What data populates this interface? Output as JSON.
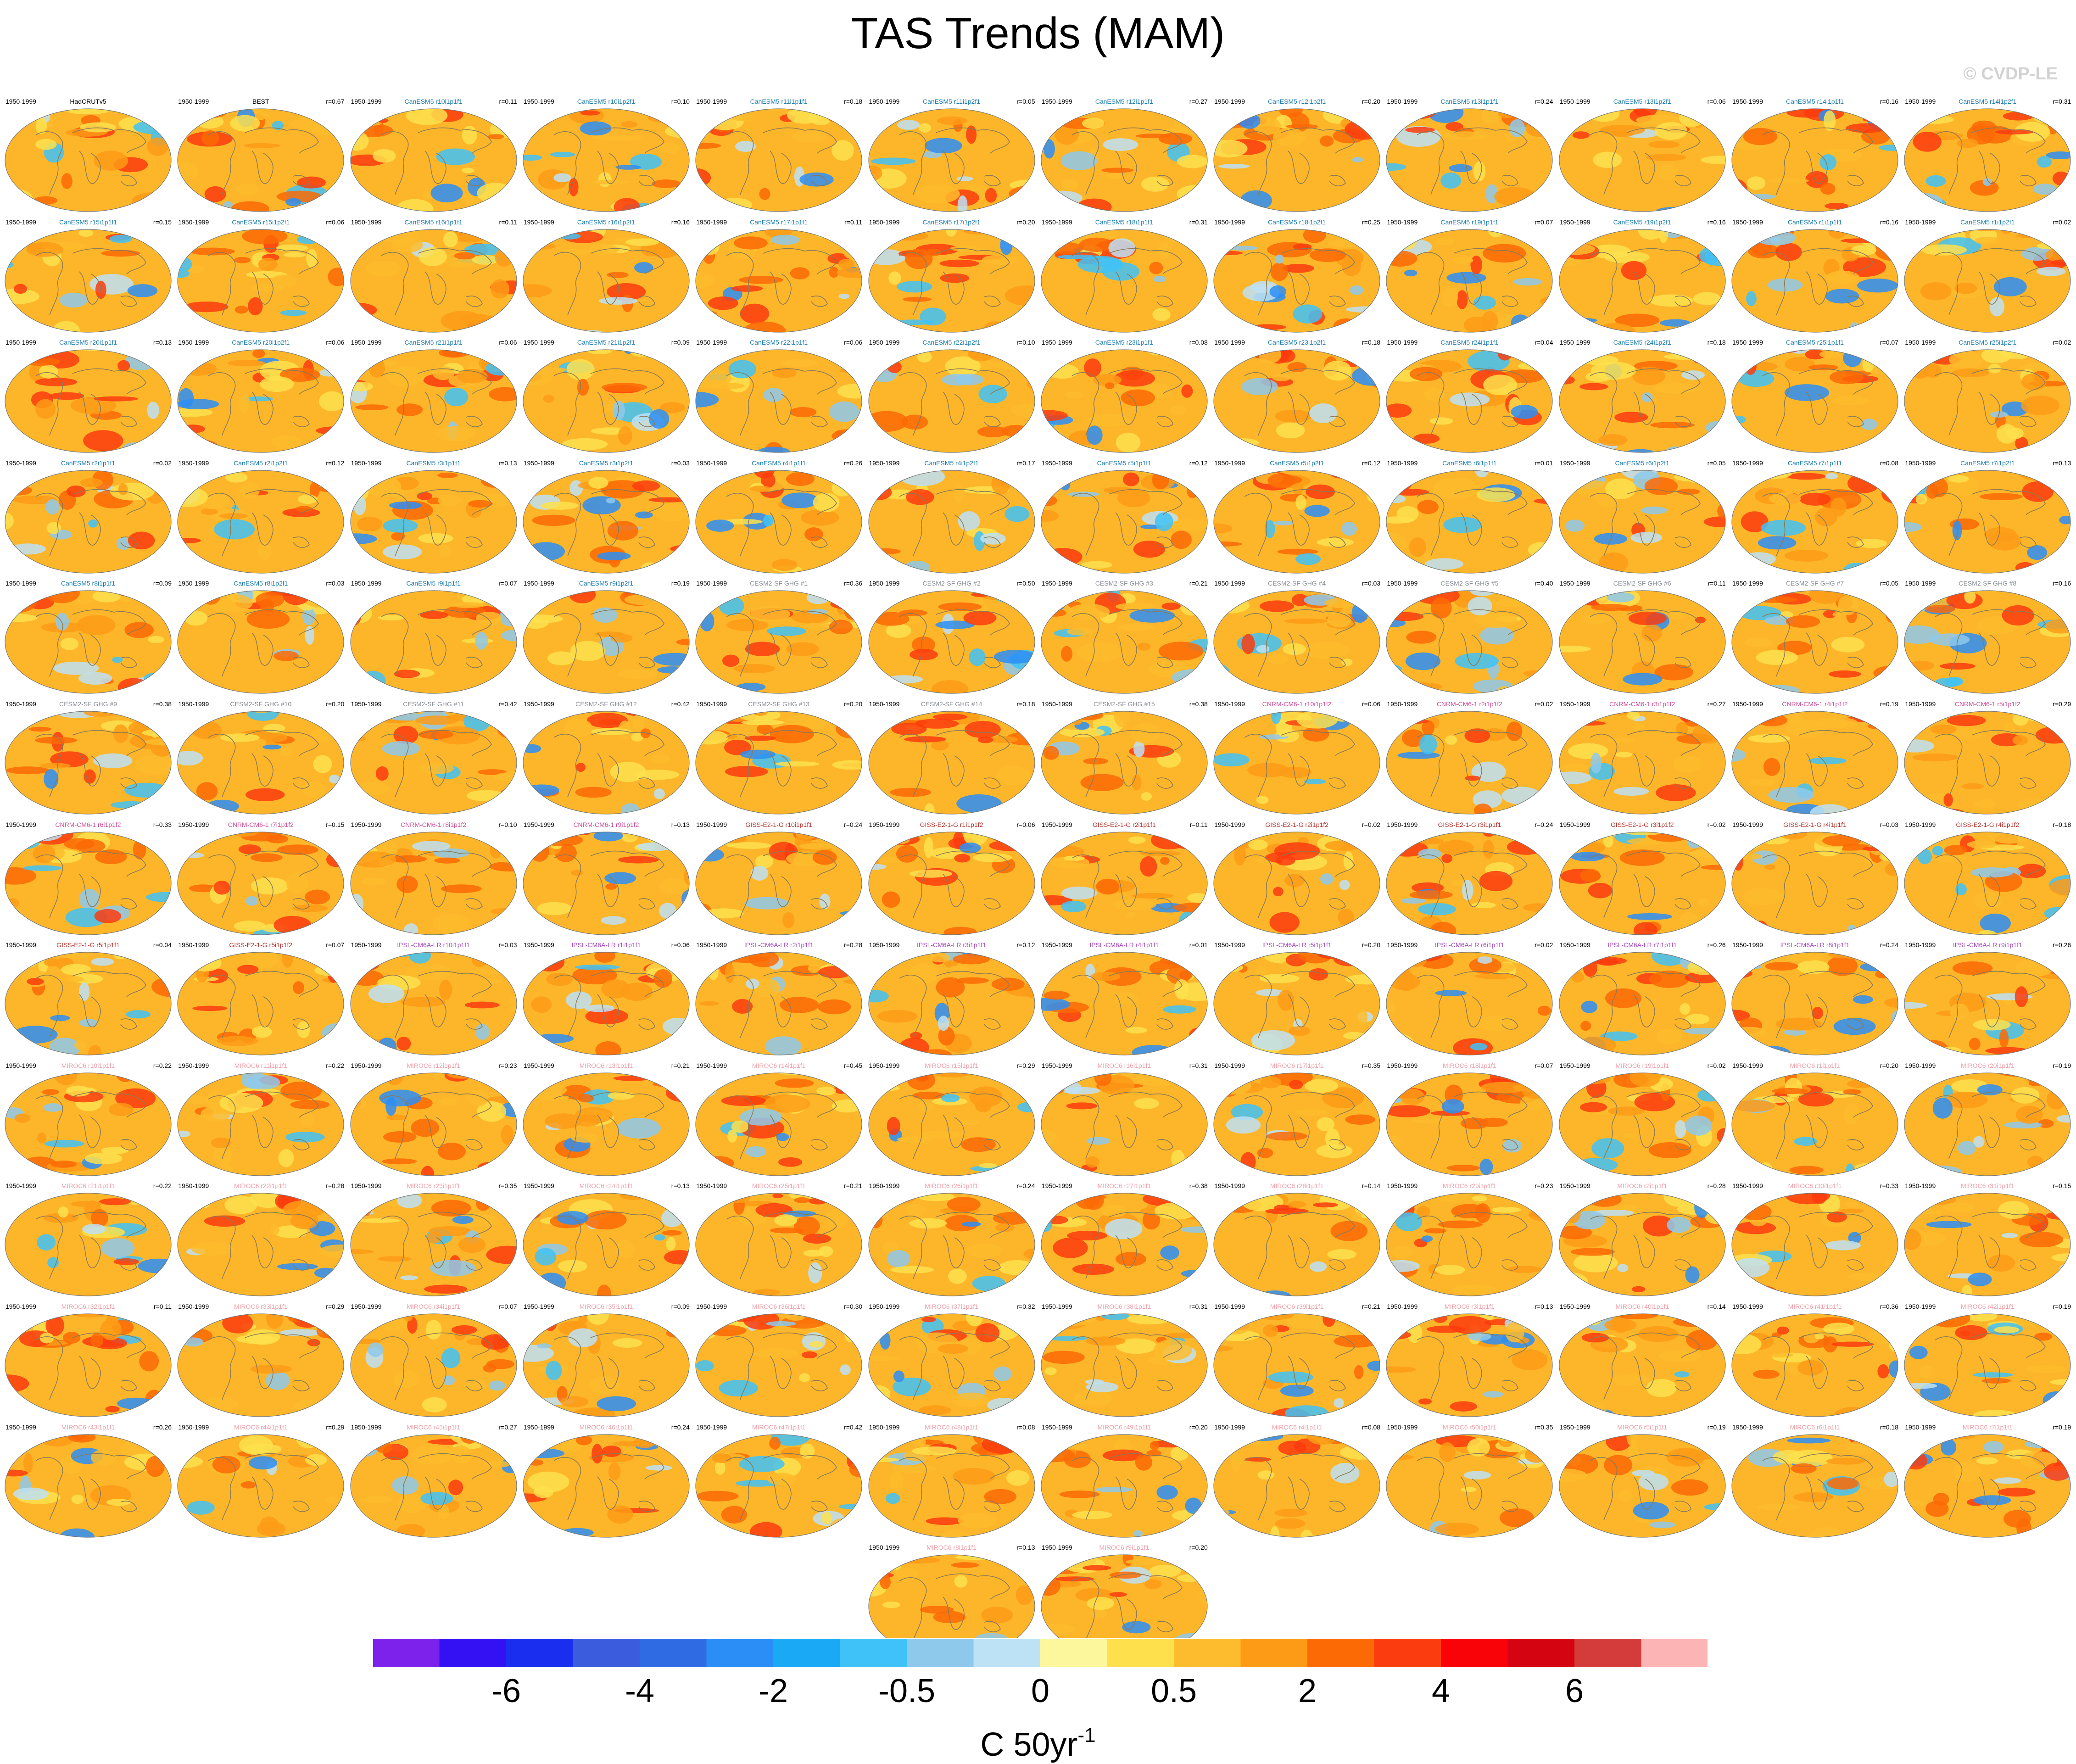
{
  "title": "TAS Trends (MAM)",
  "watermark": "© CVDP-LE",
  "period": "1950-1999",
  "colorbar": {
    "units_base": "C 50yr",
    "units_exp": "-1",
    "tick_labels": [
      "-6",
      "-4",
      "-2",
      "-0.5",
      "0",
      "0.5",
      "2",
      "4",
      "6"
    ],
    "colors": [
      "#7d22ea",
      "#3311f2",
      "#1a2ef0",
      "#3b5ddd",
      "#2f6ce3",
      "#2b8ef6",
      "#1aa9f4",
      "#3fc2f7",
      "#8ec9ec",
      "#bde1f5",
      "#fcf69d",
      "#fde04c",
      "#fdbc2d",
      "#fd9b16",
      "#fc6a05",
      "#fb3c0e",
      "#f90208",
      "#d40410",
      "#d43c3c",
      "#fcb4b4"
    ]
  },
  "chart_data": {
    "type": "heatmap",
    "description_levels": [
      -6,
      -4,
      -2,
      -0.5,
      0,
      0.5,
      2,
      4,
      6
    ],
    "panels": [
      {
        "name": "HadCRUTv5",
        "r": "",
        "color": "#000000"
      },
      {
        "name": "BEST",
        "r": "r=0.67",
        "color": "#000000"
      },
      {
        "name": "CanESM5 r10i1p1f1",
        "r": "r=0.11",
        "color": "#1b7cb0"
      },
      {
        "name": "CanESM5 r10i1p2f1",
        "r": "r=0.10",
        "color": "#1b7cb0"
      },
      {
        "name": "CanESM5 r11i1p1f1",
        "r": "r=0.18",
        "color": "#1b7cb0"
      },
      {
        "name": "CanESM5 r11i1p2f1",
        "r": "r=0.05",
        "color": "#1b7cb0"
      },
      {
        "name": "CanESM5 r12i1p1f1",
        "r": "r=0.27",
        "color": "#1b7cb0"
      },
      {
        "name": "CanESM5 r12i1p2f1",
        "r": "r=0.20",
        "color": "#1b7cb0"
      },
      {
        "name": "CanESM5 r13i1p1f1",
        "r": "r=0.24",
        "color": "#1b7cb0"
      },
      {
        "name": "CanESM5 r13i1p2f1",
        "r": "r=0.06",
        "color": "#1b7cb0"
      },
      {
        "name": "CanESM5 r14i1p1f1",
        "r": "r=0.16",
        "color": "#1b7cb0"
      },
      {
        "name": "CanESM5 r14i1p2f1",
        "r": "r=0.31",
        "color": "#1b7cb0"
      },
      {
        "name": "CanESM5 r15i1p1f1",
        "r": "r=0.15",
        "color": "#1b7cb0"
      },
      {
        "name": "CanESM5 r15i1p2f1",
        "r": "r=0.06",
        "color": "#1b7cb0"
      },
      {
        "name": "CanESM5 r16i1p1f1",
        "r": "r=0.11",
        "color": "#1b7cb0"
      },
      {
        "name": "CanESM5 r16i1p2f1",
        "r": "r=0.16",
        "color": "#1b7cb0"
      },
      {
        "name": "CanESM5 r17i1p1f1",
        "r": "r=0.11",
        "color": "#1b7cb0"
      },
      {
        "name": "CanESM5 r17i1p2f1",
        "r": "r=0.20",
        "color": "#1b7cb0"
      },
      {
        "name": "CanESM5 r18i1p1f1",
        "r": "r=0.31",
        "color": "#1b7cb0"
      },
      {
        "name": "CanESM5 r18i1p2f1",
        "r": "r=0.25",
        "color": "#1b7cb0"
      },
      {
        "name": "CanESM5 r19i1p1f1",
        "r": "r=0.07",
        "color": "#1b7cb0"
      },
      {
        "name": "CanESM5 r19i1p2f1",
        "r": "r=0.16",
        "color": "#1b7cb0"
      },
      {
        "name": "CanESM5 r1i1p1f1",
        "r": "r=0.16",
        "color": "#1b7cb0"
      },
      {
        "name": "CanESM5 r1i1p2f1",
        "r": "r=0.02",
        "color": "#1b7cb0"
      },
      {
        "name": "CanESM5 r20i1p1f1",
        "r": "r=0.13",
        "color": "#1b7cb0"
      },
      {
        "name": "CanESM5 r20i1p2f1",
        "r": "r=0.06",
        "color": "#1b7cb0"
      },
      {
        "name": "CanESM5 r21i1p1f1",
        "r": "r=0.06",
        "color": "#1b7cb0"
      },
      {
        "name": "CanESM5 r21i1p2f1",
        "r": "r=0.09",
        "color": "#1b7cb0"
      },
      {
        "name": "CanESM5 r22i1p1f1",
        "r": "r=0.06",
        "color": "#1b7cb0"
      },
      {
        "name": "CanESM5 r22i1p2f1",
        "r": "r=0.10",
        "color": "#1b7cb0"
      },
      {
        "name": "CanESM5 r23i1p1f1",
        "r": "r=0.08",
        "color": "#1b7cb0"
      },
      {
        "name": "CanESM5 r23i1p2f1",
        "r": "r=0.18",
        "color": "#1b7cb0"
      },
      {
        "name": "CanESM5 r24i1p1f1",
        "r": "r=0.04",
        "color": "#1b7cb0"
      },
      {
        "name": "CanESM5 r24i1p2f1",
        "r": "r=0.18",
        "color": "#1b7cb0"
      },
      {
        "name": "CanESM5 r25i1p1f1",
        "r": "r=0.07",
        "color": "#1b7cb0"
      },
      {
        "name": "CanESM5 r25i1p2f1",
        "r": "r=0.02",
        "color": "#1b7cb0"
      },
      {
        "name": "CanESM5 r2i1p1f1",
        "r": "r=0.02",
        "color": "#1b7cb0"
      },
      {
        "name": "CanESM5 r2i1p2f1",
        "r": "r=0.12",
        "color": "#1b7cb0"
      },
      {
        "name": "CanESM5 r3i1p1f1",
        "r": "r=0.13",
        "color": "#1b7cb0"
      },
      {
        "name": "CanESM5 r3i1p2f1",
        "r": "r=0.03",
        "color": "#1b7cb0"
      },
      {
        "name": "CanESM5 r4i1p1f1",
        "r": "r=0.26",
        "color": "#1b7cb0"
      },
      {
        "name": "CanESM5 r4i1p2f1",
        "r": "r=0.17",
        "color": "#1b7cb0"
      },
      {
        "name": "CanESM5 r5i1p1f1",
        "r": "r=0.12",
        "color": "#1b7cb0"
      },
      {
        "name": "CanESM5 r5i1p2f1",
        "r": "r=0.12",
        "color": "#1b7cb0"
      },
      {
        "name": "CanESM5 r6i1p1f1",
        "r": "r=0.01",
        "color": "#1b7cb0"
      },
      {
        "name": "CanESM5 r6i1p2f1",
        "r": "r=0.05",
        "color": "#1b7cb0"
      },
      {
        "name": "CanESM5 r7i1p1f1",
        "r": "r=0.08",
        "color": "#1b7cb0"
      },
      {
        "name": "CanESM5 r7i1p2f1",
        "r": "r=0.13",
        "color": "#1b7cb0"
      },
      {
        "name": "CanESM5 r8i1p1f1",
        "r": "r=0.09",
        "color": "#1b7cb0"
      },
      {
        "name": "CanESM5 r8i1p2f1",
        "r": "r=0.03",
        "color": "#1b7cb0"
      },
      {
        "name": "CanESM5 r9i1p1f1",
        "r": "r=0.07",
        "color": "#1b7cb0"
      },
      {
        "name": "CanESM5 r9i1p2f1",
        "r": "r=0.19",
        "color": "#1b7cb0"
      },
      {
        "name": "CESM2-SF GHG #1",
        "r": "r=0.36",
        "color": "#8a8f96"
      },
      {
        "name": "CESM2-SF GHG #2",
        "r": "r=0.50",
        "color": "#8a8f96"
      },
      {
        "name": "CESM2-SF GHG #3",
        "r": "r=0.21",
        "color": "#8a8f96"
      },
      {
        "name": "CESM2-SF GHG #4",
        "r": "r=0.03",
        "color": "#8a8f96"
      },
      {
        "name": "CESM2-SF GHG #5",
        "r": "r=0.40",
        "color": "#8a8f96"
      },
      {
        "name": "CESM2-SF GHG #6",
        "r": "r=0.11",
        "color": "#8a8f96"
      },
      {
        "name": "CESM2-SF GHG #7",
        "r": "r=0.05",
        "color": "#8a8f96"
      },
      {
        "name": "CESM2-SF GHG #8",
        "r": "r=0.16",
        "color": "#8a8f96"
      },
      {
        "name": "CESM2-SF GHG #9",
        "r": "r=0.38",
        "color": "#8a8f96"
      },
      {
        "name": "CESM2-SF GHG #10",
        "r": "r=0.20",
        "color": "#8a8f96"
      },
      {
        "name": "CESM2-SF GHG #11",
        "r": "r=0.42",
        "color": "#8a8f96"
      },
      {
        "name": "CESM2-SF GHG #12",
        "r": "r=0.42",
        "color": "#8a8f96"
      },
      {
        "name": "CESM2-SF GHG #13",
        "r": "r=0.20",
        "color": "#8a8f96"
      },
      {
        "name": "CESM2-SF GHG #14",
        "r": "r=0.18",
        "color": "#8a8f96"
      },
      {
        "name": "CESM2-SF GHG #15",
        "r": "r=0.38",
        "color": "#8a8f96"
      },
      {
        "name": "CNRM-CM6-1 r10i1p1f2",
        "r": "r=0.06",
        "color": "#d04f9a"
      },
      {
        "name": "CNRM-CM6-1 r2i1p1f2",
        "r": "r=0.02",
        "color": "#d04f9a"
      },
      {
        "name": "CNRM-CM6-1 r3i1p1f2",
        "r": "r=0.27",
        "color": "#d04f9a"
      },
      {
        "name": "CNRM-CM6-1 r4i1p1f2",
        "r": "r=0.19",
        "color": "#d04f9a"
      },
      {
        "name": "CNRM-CM6-1 r5i1p1f2",
        "r": "r=0.29",
        "color": "#d04f9a"
      },
      {
        "name": "CNRM-CM6-1 r6i1p1f2",
        "r": "r=0.33",
        "color": "#d04f9a"
      },
      {
        "name": "CNRM-CM6-1 r7i1p1f2",
        "r": "r=0.15",
        "color": "#d04f9a"
      },
      {
        "name": "CNRM-CM6-1 r8i1p1f2",
        "r": "r=0.10",
        "color": "#d04f9a"
      },
      {
        "name": "CNRM-CM6-1 r9i1p1f2",
        "r": "r=0.13",
        "color": "#d04f9a"
      },
      {
        "name": "GISS-E2-1-G r10i1p1f1",
        "r": "r=0.24",
        "color": "#b5322b"
      },
      {
        "name": "GISS-E2-1-G r1i1p1f2",
        "r": "r=0.06",
        "color": "#b5322b"
      },
      {
        "name": "GISS-E2-1-G r2i1p1f1",
        "r": "r=0.11",
        "color": "#b5322b"
      },
      {
        "name": "GISS-E2-1-G r2i1p1f2",
        "r": "r=0.02",
        "color": "#b5322b"
      },
      {
        "name": "GISS-E2-1-G r3i1p1f1",
        "r": "r=0.24",
        "color": "#b5322b"
      },
      {
        "name": "GISS-E2-1-G r3i1p1f2",
        "r": "r=0.02",
        "color": "#b5322b"
      },
      {
        "name": "GISS-E2-1-G r4i1p1f1",
        "r": "r=0.03",
        "color": "#b5322b"
      },
      {
        "name": "GISS-E2-1-G r4i1p1f2",
        "r": "r=0.18",
        "color": "#b5322b"
      },
      {
        "name": "GISS-E2-1-G r5i1p1f1",
        "r": "r=0.04",
        "color": "#b5322b"
      },
      {
        "name": "GISS-E2-1-G r5i1p1f2",
        "r": "r=0.07",
        "color": "#b5322b"
      },
      {
        "name": "IPSL-CM6A-LR r10i1p1f1",
        "r": "r=0.03",
        "color": "#a64ac0"
      },
      {
        "name": "IPSL-CM6A-LR r1i1p1f1",
        "r": "r=0.06",
        "color": "#a64ac0"
      },
      {
        "name": "IPSL-CM6A-LR r2i1p1f1",
        "r": "r=0.28",
        "color": "#a64ac0"
      },
      {
        "name": "IPSL-CM6A-LR r3i1p1f1",
        "r": "r=0.12",
        "color": "#a64ac0"
      },
      {
        "name": "IPSL-CM6A-LR r4i1p1f1",
        "r": "r=0.01",
        "color": "#a64ac0"
      },
      {
        "name": "IPSL-CM6A-LR r5i1p1f1",
        "r": "r=0.20",
        "color": "#a64ac0"
      },
      {
        "name": "IPSL-CM6A-LR r6i1p1f1",
        "r": "r=0.02",
        "color": "#a64ac0"
      },
      {
        "name": "IPSL-CM6A-LR r7i1p1f1",
        "r": "r=0.26",
        "color": "#a64ac0"
      },
      {
        "name": "IPSL-CM6A-LR r8i1p1f1",
        "r": "r=0.24",
        "color": "#a64ac0"
      },
      {
        "name": "IPSL-CM6A-LR r9i1p1f1",
        "r": "r=0.26",
        "color": "#a64ac0"
      },
      {
        "name": "MIROC6 r10i1p1f1",
        "r": "r=0.22",
        "color": "#f0a0a8"
      },
      {
        "name": "MIROC6 r11i1p1f1",
        "r": "r=0.22",
        "color": "#f0a0a8"
      },
      {
        "name": "MIROC6 r12i1p1f1",
        "r": "r=0.23",
        "color": "#f0a0a8"
      },
      {
        "name": "MIROC6 r13i1p1f1",
        "r": "r=0.21",
        "color": "#f0a0a8"
      },
      {
        "name": "MIROC6 r14i1p1f1",
        "r": "r=0.45",
        "color": "#f0a0a8"
      },
      {
        "name": "MIROC6 r15i1p1f1",
        "r": "r=0.29",
        "color": "#f0a0a8"
      },
      {
        "name": "MIROC6 r16i1p1f1",
        "r": "r=0.31",
        "color": "#f0a0a8"
      },
      {
        "name": "MIROC6 r17i1p1f1",
        "r": "r=0.35",
        "color": "#f0a0a8"
      },
      {
        "name": "MIROC6 r18i1p1f1",
        "r": "r=0.07",
        "color": "#f0a0a8"
      },
      {
        "name": "MIROC6 r19i1p1f1",
        "r": "r=0.02",
        "color": "#f0a0a8"
      },
      {
        "name": "MIROC6 r1i1p1f1",
        "r": "r=0.20",
        "color": "#f0a0a8"
      },
      {
        "name": "MIROC6 r20i1p1f1",
        "r": "r=0.19",
        "color": "#f0a0a8"
      },
      {
        "name": "MIROC6 r21i1p1f1",
        "r": "r=0.22",
        "color": "#f0a0a8"
      },
      {
        "name": "MIROC6 r22i1p1f1",
        "r": "r=0.28",
        "color": "#f0a0a8"
      },
      {
        "name": "MIROC6 r23i1p1f1",
        "r": "r=0.35",
        "color": "#f0a0a8"
      },
      {
        "name": "MIROC6 r24i1p1f1",
        "r": "r=0.13",
        "color": "#f0a0a8"
      },
      {
        "name": "MIROC6 r25i1p1f1",
        "r": "r=0.21",
        "color": "#f0a0a8"
      },
      {
        "name": "MIROC6 r26i1p1f1",
        "r": "r=0.24",
        "color": "#f0a0a8"
      },
      {
        "name": "MIROC6 r27i1p1f1",
        "r": "r=0.38",
        "color": "#f0a0a8"
      },
      {
        "name": "MIROC6 r28i1p1f1",
        "r": "r=0.14",
        "color": "#f0a0a8"
      },
      {
        "name": "MIROC6 r29i1p1f1",
        "r": "r=0.23",
        "color": "#f0a0a8"
      },
      {
        "name": "MIROC6 r2i1p1f1",
        "r": "r=0.28",
        "color": "#f0a0a8"
      },
      {
        "name": "MIROC6 r30i1p1f1",
        "r": "r=0.33",
        "color": "#f0a0a8"
      },
      {
        "name": "MIROC6 r31i1p1f1",
        "r": "r=0.15",
        "color": "#f0a0a8"
      },
      {
        "name": "MIROC6 r32i1p1f1",
        "r": "r=0.11",
        "color": "#f0a0a8"
      },
      {
        "name": "MIROC6 r33i1p1f1",
        "r": "r=0.29",
        "color": "#f0a0a8"
      },
      {
        "name": "MIROC6 r34i1p1f1",
        "r": "r=0.07",
        "color": "#f0a0a8"
      },
      {
        "name": "MIROC6 r35i1p1f1",
        "r": "r=0.09",
        "color": "#f0a0a8"
      },
      {
        "name": "MIROC6 r36i1p1f1",
        "r": "r=0.30",
        "color": "#f0a0a8"
      },
      {
        "name": "MIROC6 r37i1p1f1",
        "r": "r=0.32",
        "color": "#f0a0a8"
      },
      {
        "name": "MIROC6 r38i1p1f1",
        "r": "r=0.31",
        "color": "#f0a0a8"
      },
      {
        "name": "MIROC6 r39i1p1f1",
        "r": "r=0.21",
        "color": "#f0a0a8"
      },
      {
        "name": "MIROC6 r3i1p1f1",
        "r": "r=0.13",
        "color": "#f0a0a8"
      },
      {
        "name": "MIROC6 r40i1p1f1",
        "r": "r=0.14",
        "color": "#f0a0a8"
      },
      {
        "name": "MIROC6 r41i1p1f1",
        "r": "r=0.36",
        "color": "#f0a0a8"
      },
      {
        "name": "MIROC6 r42i1p1f1",
        "r": "r=0.19",
        "color": "#f0a0a8"
      },
      {
        "name": "MIROC6 r43i1p1f1",
        "r": "r=0.26",
        "color": "#f0a0a8"
      },
      {
        "name": "MIROC6 r44i1p1f1",
        "r": "r=0.29",
        "color": "#f0a0a8"
      },
      {
        "name": "MIROC6 r45i1p1f1",
        "r": "r=0.27",
        "color": "#f0a0a8"
      },
      {
        "name": "MIROC6 r46i1p1f1",
        "r": "r=0.24",
        "color": "#f0a0a8"
      },
      {
        "name": "MIROC6 r47i1p1f1",
        "r": "r=0.42",
        "color": "#f0a0a8"
      },
      {
        "name": "MIROC6 r48i1p1f1",
        "r": "r=0.08",
        "color": "#f0a0a8"
      },
      {
        "name": "MIROC6 r49i1p1f1",
        "r": "r=0.20",
        "color": "#f0a0a8"
      },
      {
        "name": "MIROC6 r4i1p1f1",
        "r": "r=0.08",
        "color": "#f0a0a8"
      },
      {
        "name": "MIROC6 r50i1p1f1",
        "r": "r=0.35",
        "color": "#f0a0a8"
      },
      {
        "name": "MIROC6 r5i1p1f1",
        "r": "r=0.19",
        "color": "#f0a0a8"
      },
      {
        "name": "MIROC6 r6i1p1f1",
        "r": "r=0.18",
        "color": "#f0a0a8"
      },
      {
        "name": "MIROC6 r7i1p1f1",
        "r": "r=0.19",
        "color": "#f0a0a8"
      },
      {
        "name": "MIROC6 r8i1p1f1",
        "r": "r=0.13",
        "color": "#f0a0a8"
      },
      {
        "name": "MIROC6 r9i1p1f1",
        "r": "r=0.20",
        "color": "#f0a0a8"
      }
    ]
  }
}
